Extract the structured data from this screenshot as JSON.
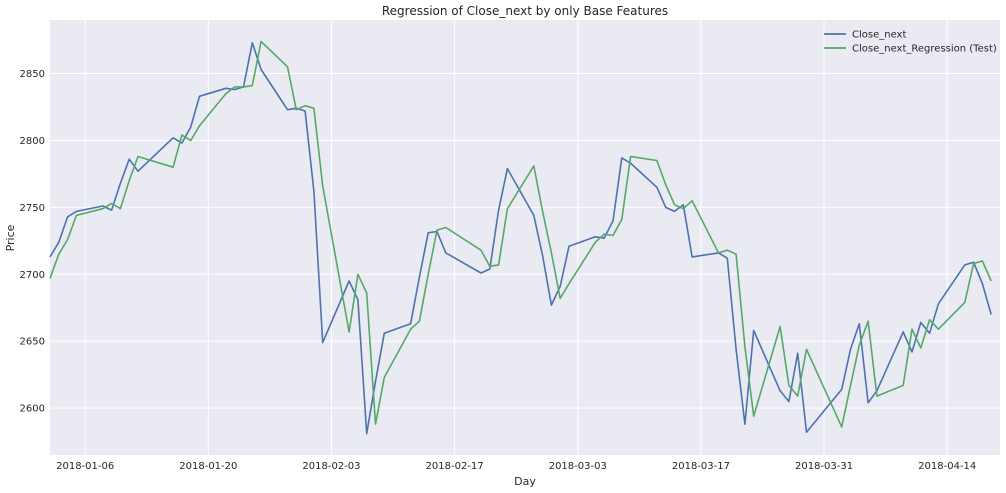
{
  "chart_data": {
    "type": "line",
    "title": "Regression of Close_next by only Base Features",
    "xlabel": "Day",
    "ylabel": "Price",
    "x_start": "2018-01-02",
    "x_end": "2018-04-20",
    "ylim": [
      2565,
      2890
    ],
    "x_ticks": [
      "2018-01-06",
      "2018-01-20",
      "2018-02-03",
      "2018-02-17",
      "2018-03-03",
      "2018-03-17",
      "2018-03-31",
      "2018-04-14"
    ],
    "y_ticks": [
      2600,
      2650,
      2700,
      2750,
      2800,
      2850
    ],
    "grid": true,
    "legend_position": "top-right",
    "series": [
      {
        "name": "Close_next",
        "color": "#4c72b0",
        "points": [
          [
            "2018-01-02",
            2713
          ],
          [
            "2018-01-03",
            2724
          ],
          [
            "2018-01-04",
            2743
          ],
          [
            "2018-01-05",
            2747
          ],
          [
            "2018-01-08",
            2751
          ],
          [
            "2018-01-09",
            2748
          ],
          [
            "2018-01-10",
            2768
          ],
          [
            "2018-01-11",
            2786
          ],
          [
            "2018-01-12",
            2777
          ],
          [
            "2018-01-16",
            2802
          ],
          [
            "2018-01-17",
            2798
          ],
          [
            "2018-01-18",
            2810
          ],
          [
            "2018-01-19",
            2833
          ],
          [
            "2018-01-22",
            2839
          ],
          [
            "2018-01-23",
            2838
          ],
          [
            "2018-01-24",
            2840
          ],
          [
            "2018-01-25",
            2873
          ],
          [
            "2018-01-26",
            2853
          ],
          [
            "2018-01-29",
            2823
          ],
          [
            "2018-01-30",
            2824
          ],
          [
            "2018-01-31",
            2822
          ],
          [
            "2018-02-01",
            2762
          ],
          [
            "2018-02-02",
            2649
          ],
          [
            "2018-02-05",
            2695
          ],
          [
            "2018-02-06",
            2681
          ],
          [
            "2018-02-07",
            2581
          ],
          [
            "2018-02-08",
            2620
          ],
          [
            "2018-02-09",
            2656
          ],
          [
            "2018-02-12",
            2663
          ],
          [
            "2018-02-13",
            2698
          ],
          [
            "2018-02-14",
            2731
          ],
          [
            "2018-02-15",
            2732
          ],
          [
            "2018-02-16",
            2716
          ],
          [
            "2018-02-20",
            2701
          ],
          [
            "2018-02-21",
            2704
          ],
          [
            "2018-02-22",
            2748
          ],
          [
            "2018-02-23",
            2779
          ],
          [
            "2018-02-26",
            2744
          ],
          [
            "2018-02-27",
            2714
          ],
          [
            "2018-02-28",
            2677
          ],
          [
            "2018-03-01",
            2691
          ],
          [
            "2018-03-02",
            2721
          ],
          [
            "2018-03-05",
            2728
          ],
          [
            "2018-03-06",
            2727
          ],
          [
            "2018-03-07",
            2740
          ],
          [
            "2018-03-08",
            2787
          ],
          [
            "2018-03-09",
            2783
          ],
          [
            "2018-03-12",
            2765
          ],
          [
            "2018-03-13",
            2750
          ],
          [
            "2018-03-14",
            2747
          ],
          [
            "2018-03-15",
            2752
          ],
          [
            "2018-03-16",
            2713
          ],
          [
            "2018-03-19",
            2716
          ],
          [
            "2018-03-20",
            2712
          ],
          [
            "2018-03-21",
            2644
          ],
          [
            "2018-03-22",
            2588
          ],
          [
            "2018-03-23",
            2658
          ],
          [
            "2018-03-26",
            2613
          ],
          [
            "2018-03-27",
            2605
          ],
          [
            "2018-03-28",
            2641
          ],
          [
            "2018-03-29",
            2582
          ],
          [
            "2018-04-02",
            2614
          ],
          [
            "2018-04-03",
            2644
          ],
          [
            "2018-04-04",
            2663
          ],
          [
            "2018-04-05",
            2604
          ],
          [
            "2018-04-06",
            2613
          ],
          [
            "2018-04-09",
            2657
          ],
          [
            "2018-04-10",
            2642
          ],
          [
            "2018-04-11",
            2664
          ],
          [
            "2018-04-12",
            2656
          ],
          [
            "2018-04-13",
            2678
          ],
          [
            "2018-04-16",
            2707
          ],
          [
            "2018-04-17",
            2709
          ],
          [
            "2018-04-18",
            2693
          ],
          [
            "2018-04-19",
            2670
          ]
        ]
      },
      {
        "name": "Close_next_Regression (Test)",
        "color": "#55a868",
        "points": [
          [
            "2018-01-02",
            2697
          ],
          [
            "2018-01-03",
            2715
          ],
          [
            "2018-01-04",
            2726
          ],
          [
            "2018-01-05",
            2744
          ],
          [
            "2018-01-08",
            2749
          ],
          [
            "2018-01-09",
            2753
          ],
          [
            "2018-01-10",
            2749
          ],
          [
            "2018-01-11",
            2770
          ],
          [
            "2018-01-12",
            2788
          ],
          [
            "2018-01-16",
            2780
          ],
          [
            "2018-01-17",
            2804
          ],
          [
            "2018-01-18",
            2800
          ],
          [
            "2018-01-19",
            2811
          ],
          [
            "2018-01-22",
            2835
          ],
          [
            "2018-01-23",
            2840
          ],
          [
            "2018-01-24",
            2840
          ],
          [
            "2018-01-25",
            2841
          ],
          [
            "2018-01-26",
            2874
          ],
          [
            "2018-01-29",
            2855
          ],
          [
            "2018-01-30",
            2823
          ],
          [
            "2018-01-31",
            2826
          ],
          [
            "2018-02-01",
            2824
          ],
          [
            "2018-02-02",
            2766
          ],
          [
            "2018-02-05",
            2657
          ],
          [
            "2018-02-06",
            2700
          ],
          [
            "2018-02-07",
            2686
          ],
          [
            "2018-02-08",
            2588
          ],
          [
            "2018-02-09",
            2623
          ],
          [
            "2018-02-12",
            2659
          ],
          [
            "2018-02-13",
            2665
          ],
          [
            "2018-02-14",
            2700
          ],
          [
            "2018-02-15",
            2733
          ],
          [
            "2018-02-16",
            2735
          ],
          [
            "2018-02-20",
            2718
          ],
          [
            "2018-02-21",
            2706
          ],
          [
            "2018-02-22",
            2707
          ],
          [
            "2018-02-23",
            2749
          ],
          [
            "2018-02-26",
            2781
          ],
          [
            "2018-02-27",
            2747
          ],
          [
            "2018-02-28",
            2716
          ],
          [
            "2018-03-01",
            2682
          ],
          [
            "2018-03-02",
            2693
          ],
          [
            "2018-03-05",
            2724
          ],
          [
            "2018-03-06",
            2730
          ],
          [
            "2018-03-07",
            2729
          ],
          [
            "2018-03-08",
            2741
          ],
          [
            "2018-03-09",
            2788
          ],
          [
            "2018-03-12",
            2785
          ],
          [
            "2018-03-13",
            2767
          ],
          [
            "2018-03-14",
            2752
          ],
          [
            "2018-03-15",
            2749
          ],
          [
            "2018-03-16",
            2755
          ],
          [
            "2018-03-19",
            2716
          ],
          [
            "2018-03-20",
            2718
          ],
          [
            "2018-03-21",
            2715
          ],
          [
            "2018-03-22",
            2646
          ],
          [
            "2018-03-23",
            2594
          ],
          [
            "2018-03-26",
            2661
          ],
          [
            "2018-03-27",
            2617
          ],
          [
            "2018-03-28",
            2609
          ],
          [
            "2018-03-29",
            2644
          ],
          [
            "2018-04-02",
            2586
          ],
          [
            "2018-04-03",
            2617
          ],
          [
            "2018-04-04",
            2647
          ],
          [
            "2018-04-05",
            2665
          ],
          [
            "2018-04-06",
            2609
          ],
          [
            "2018-04-09",
            2617
          ],
          [
            "2018-04-10",
            2659
          ],
          [
            "2018-04-11",
            2645
          ],
          [
            "2018-04-12",
            2666
          ],
          [
            "2018-04-13",
            2659
          ],
          [
            "2018-04-16",
            2679
          ],
          [
            "2018-04-17",
            2708
          ],
          [
            "2018-04-18",
            2710
          ],
          [
            "2018-04-19",
            2695
          ]
        ]
      }
    ]
  }
}
